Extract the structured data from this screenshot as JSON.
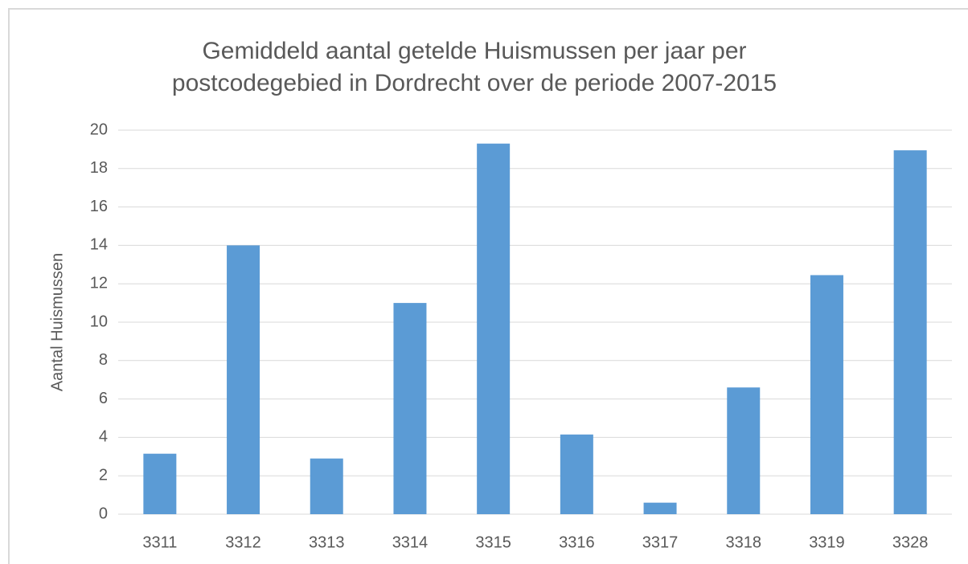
{
  "chart_data": {
    "type": "bar",
    "title": "Gemiddeld aantal getelde Huismussen per jaar per postcodegebied in Dordrecht over de periode 2007-2015",
    "y_label": "Aantal Huismussen",
    "categories": [
      "3311",
      "3312",
      "3313",
      "3314",
      "3315",
      "3316",
      "3317",
      "3318",
      "3319",
      "3328"
    ],
    "values": [
      3.15,
      14.0,
      2.9,
      11.0,
      19.3,
      4.15,
      0.6,
      6.6,
      12.45,
      18.95
    ],
    "color": "#5b9bd5",
    "ylim": [
      0,
      20
    ],
    "yticks": [
      0,
      2,
      4,
      6,
      8,
      10,
      12,
      14,
      16,
      18,
      20
    ],
    "grid": true
  }
}
